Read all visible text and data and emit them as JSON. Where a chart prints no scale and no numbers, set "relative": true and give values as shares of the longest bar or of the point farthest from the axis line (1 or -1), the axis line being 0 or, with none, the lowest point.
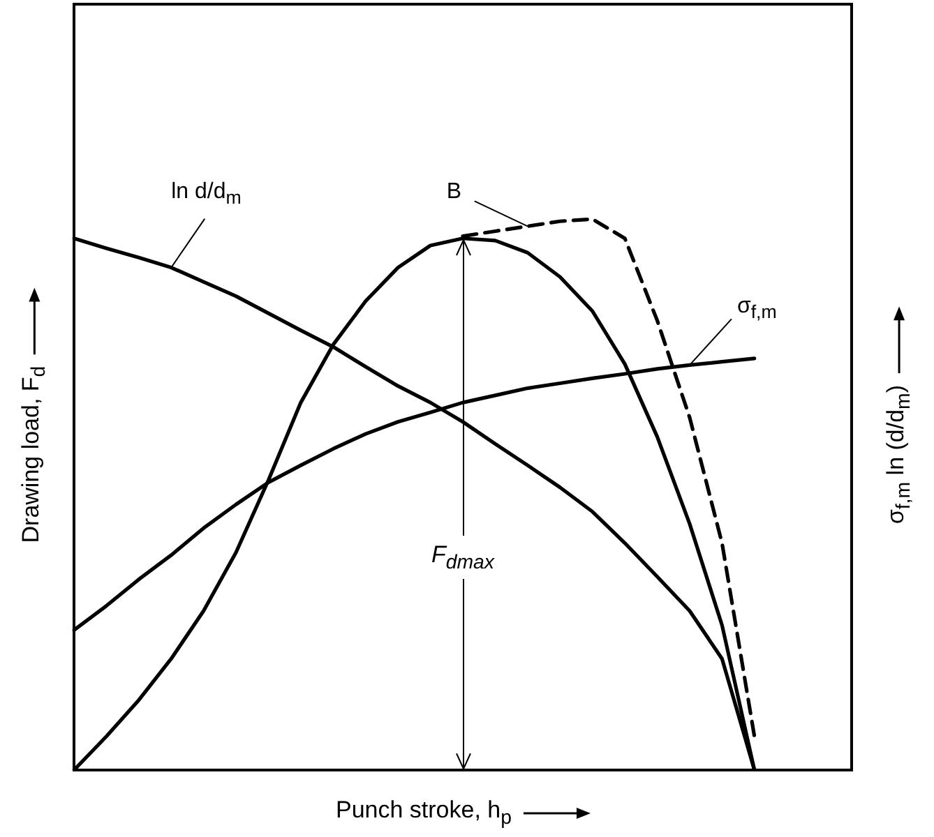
{
  "chart_data": {
    "type": "line",
    "relative": true,
    "xlabel": "Punch stroke, h$_{p}$",
    "ylabel": "Drawing load, F$_{d}$",
    "y2label": "σ$_{f,m}$ ln (d/d$_{m}$)",
    "tick_labels": false,
    "grid": false,
    "legend": false,
    "marker": "none",
    "annotations": [
      "F$_{dmax}$"
    ],
    "categories": [
      null,
      null,
      null,
      null,
      null,
      null,
      null,
      null,
      null,
      null,
      null,
      null,
      null,
      null,
      null,
      null,
      null,
      null,
      null,
      null,
      null,
      null,
      null,
      null,
      null
    ],
    "series": [
      {
        "color": "#000000",
        "line_style": "solid",
        "values": [
          0,
          0.061,
          0.127,
          0.202,
          0.289,
          0.395,
          0.526,
          0.667,
          0.772,
          0.851,
          0.912,
          0.952,
          0.965,
          0.961,
          0.939,
          0.895,
          0.833,
          0.737,
          0.605,
          0.447,
          0.263,
          0,
          null,
          null,
          null
        ]
      },
      {
        "name": "ln d/d$_{m}$",
        "color": "#000000",
        "line_style": "solid",
        "values": [
          0.965,
          0.947,
          0.93,
          0.912,
          0.886,
          0.86,
          0.829,
          0.798,
          0.768,
          0.732,
          0.697,
          0.667,
          0.632,
          0.592,
          0.553,
          0.513,
          0.469,
          0.412,
          0.351,
          0.289,
          0.202,
          0,
          null,
          null,
          null
        ]
      },
      {
        "name": "σ$_{f,m}$",
        "color": "#000000",
        "line_style": "solid",
        "values": [
          0.254,
          0.298,
          0.346,
          0.39,
          0.439,
          0.482,
          0.522,
          0.553,
          0.583,
          0.61,
          0.632,
          0.649,
          0.667,
          0.68,
          0.693,
          0.702,
          0.711,
          0.719,
          0.728,
          0.735,
          0.741,
          0.747,
          null,
          null,
          null
        ]
      },
      {
        "name": "B",
        "color": "#000000",
        "line_style": "dashed",
        "values": [
          null,
          null,
          null,
          null,
          null,
          null,
          null,
          null,
          null,
          null,
          null,
          null,
          0.969,
          0.978,
          0.987,
          0.996,
          1,
          0.965,
          0.816,
          0.64,
          0.412,
          0.061,
          null,
          null,
          null
        ]
      }
    ]
  }
}
